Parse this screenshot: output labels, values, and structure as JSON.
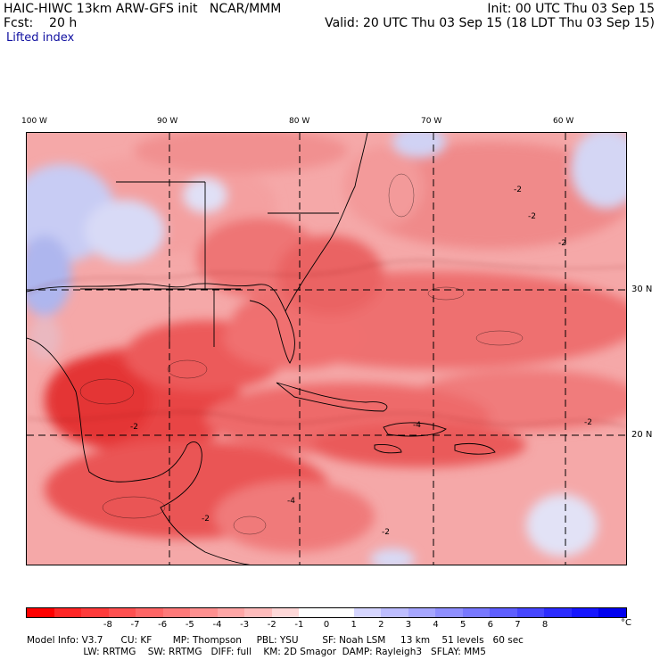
{
  "header": {
    "model_line": "HAIC-HIWC 13km ARW-GFS init   NCAR/MMM",
    "init_line": "Init: 00 UTC Thu 03 Sep 15",
    "fcst_line": "Fcst:    20 h",
    "valid_line": "Valid: 20 UTC Thu 03 Sep 15 (18 LDT Thu 03 Sep 15)",
    "field_name": "Lifted index"
  },
  "map": {
    "longitude_labels": [
      "100 W",
      "90 W",
      "80 W",
      "70 W",
      "60 W"
    ],
    "latitude_labels": [
      "30 N",
      "20 N"
    ],
    "contour_labels": [
      "-2",
      "-2",
      "-2",
      "-4",
      "-4",
      "-2",
      "-2",
      "-2",
      "-2"
    ],
    "colors": {
      "unstable_deep": "#e8383a",
      "unstable_mid": "#f07c7c",
      "unstable_light": "#f8bcbc",
      "stable_light": "#c8ccf4",
      "stable_mid": "#9aa4ec"
    }
  },
  "colorbar": {
    "ticks": [
      "-8",
      "-7",
      "-6",
      "-5",
      "-4",
      "-3",
      "-2",
      "-1",
      "0",
      "1",
      "2",
      "3",
      "4",
      "5",
      "6",
      "7",
      "8"
    ],
    "unit": "°C",
    "colors": [
      "#ff0000",
      "#ff2626",
      "#ff3b3b",
      "#ff5050",
      "#ff6666",
      "#ff7a7a",
      "#ff9090",
      "#ffa6a6",
      "#ffbcbc",
      "#ffd8d8",
      "#ffffff",
      "#ffffff",
      "#d6d6ff",
      "#bdbdff",
      "#a6a6ff",
      "#8f8fff",
      "#7878ff",
      "#5e5eff",
      "#4646ff",
      "#2c2cff",
      "#1616ff",
      "#0000ee"
    ]
  },
  "info": {
    "line1": "Model Info: V3.7      CU: KF       MP: Thompson     PBL: YSU        SF: Noah LSM     13 km    51 levels   60 sec",
    "line2": "                   LW: RRTMG    SW: RRTMG   DIFF: full    KM: 2D Smagor  DAMP: Rayleigh3   SFLAY: MM5"
  }
}
